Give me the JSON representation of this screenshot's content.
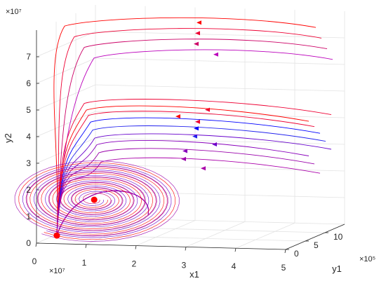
{
  "chart_data": {
    "type": "line",
    "projection": "3d",
    "title": "",
    "xlabel": "x1",
    "ylabel": "y1",
    "zlabel": "y2",
    "x_exponent": "×10⁷",
    "y_exponent": "×10⁵",
    "z_exponent": "×10⁷",
    "xlim": [
      0,
      5
    ],
    "ylim": [
      0,
      15
    ],
    "zlim": [
      0,
      8
    ],
    "x_ticks": [
      "0",
      "1",
      "2",
      "3",
      "4",
      "5"
    ],
    "y_ticks": [
      "0",
      "5",
      "10"
    ],
    "z_ticks": [
      "0",
      "1",
      "2",
      "3",
      "4",
      "5",
      "6",
      "7"
    ],
    "grid": true,
    "equilibria": [
      {
        "x1": 0.4,
        "y1": 0.1,
        "y2": 0.3
      },
      {
        "x1": 1.0,
        "y1": 2.0,
        "y2": 1.55
      }
    ],
    "series": [
      {
        "color": "#ff0000",
        "top_value": 8.1
      },
      {
        "color": "#ee0033",
        "top_value": 7.7
      },
      {
        "color": "#cc0066",
        "top_value": 7.3
      },
      {
        "color": "#bb00bb",
        "top_value": 6.9
      },
      {
        "color": "#ee0033",
        "top_value": 5.3
      },
      {
        "color": "#ff0000",
        "top_value": 5.05
      },
      {
        "color": "#ee0033",
        "top_value": 4.85
      },
      {
        "color": "#0000ff",
        "top_value": 4.6
      },
      {
        "color": "#2222ee",
        "top_value": 4.3
      },
      {
        "color": "#6600cc",
        "top_value": 4.0
      },
      {
        "color": "#8800bb",
        "top_value": 3.75
      },
      {
        "color": "#9900aa",
        "top_value": 3.45
      },
      {
        "color": "#aa00aa",
        "top_value": 3.1
      }
    ]
  }
}
